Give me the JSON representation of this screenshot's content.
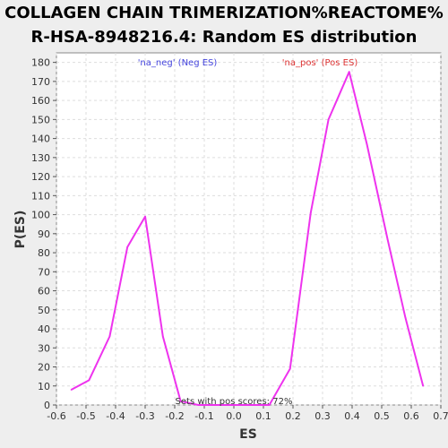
{
  "chart_data": {
    "type": "line",
    "title_line1": "COLLAGEN CHAIN TRIMERIZATION%REACTOME%",
    "title_line2": "R-HSA-8948216.4: Random ES distribution",
    "xlabel": "ES",
    "ylabel": "P(ES)",
    "xlim": [
      -0.6,
      0.7
    ],
    "ylim": [
      0,
      185
    ],
    "x_ticks": [
      "-0.6",
      "-0.5",
      "-0.4",
      "-0.3",
      "-0.2",
      "-0.1",
      "0.0",
      "0.1",
      "0.2",
      "0.3",
      "0.4",
      "0.5",
      "0.6",
      "0.7"
    ],
    "y_ticks": [
      "0",
      "10",
      "20",
      "30",
      "40",
      "50",
      "60",
      "70",
      "80",
      "90",
      "100",
      "110",
      "120",
      "130",
      "140",
      "150",
      "160",
      "170",
      "180"
    ],
    "grid": true,
    "series": [
      {
        "color": "#ee33ee",
        "x": [
          -0.55,
          -0.49,
          -0.42,
          -0.36,
          -0.3,
          -0.24,
          -0.18,
          -0.12,
          -0.06,
          0.0,
          0.06,
          0.12,
          0.19,
          0.26,
          0.32,
          0.39,
          0.45,
          0.52,
          0.58,
          0.64
        ],
        "y": [
          8,
          13,
          36,
          83,
          99,
          36,
          2,
          0,
          0,
          0,
          0,
          0,
          19,
          101,
          150,
          175,
          137,
          87,
          46,
          10
        ]
      }
    ],
    "legend": [
      {
        "label": "'na_neg' (Neg ES)",
        "color": "#4444dd"
      },
      {
        "label": "'na_pos' (Pos ES)",
        "color": "#dd3333"
      }
    ],
    "annotation": "Sets with pos scores: 72%"
  }
}
